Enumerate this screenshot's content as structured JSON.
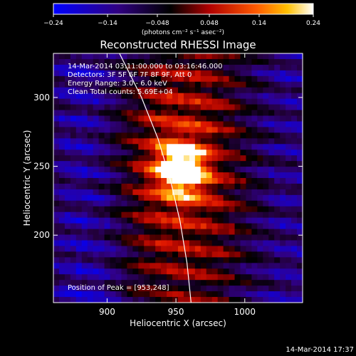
{
  "chart_data": {
    "type": "heatmap",
    "title": "Reconstructed RHESSI Image",
    "xlabel": "Heliocentric X (arcsec)",
    "ylabel": "Heliocentric Y (arcsec)",
    "xlim": [
      861,
      1042
    ],
    "ylim": [
      151,
      332
    ],
    "x_ticks": [
      900,
      950,
      1000
    ],
    "y_ticks": [
      200,
      250,
      300
    ],
    "colorbar": {
      "min": -0.24,
      "max": 0.24,
      "ticks": [
        -0.24,
        -0.14,
        -0.048,
        0.048,
        0.14,
        0.24
      ],
      "tick_labels": [
        "−0.24",
        "−0.14",
        "−0.048",
        "0.048",
        "0.14",
        "0.24"
      ],
      "units": "(photons cm⁻² s⁻¹ asec⁻²)",
      "colormap": [
        "#0000ff",
        "#2a0070",
        "#000000",
        "#b00000",
        "#ff5a00",
        "#ffc000",
        "#ffffff"
      ]
    },
    "annotations": [
      "14-Mar-2014 03:11:00.000 to 03:16:46.000",
      "Detectors: 3F 5F 6F 7F 8F 9F, Att 0",
      "Energy Range: 3.0 - 6.0 keV",
      "Clean    Total counts: 5.69E+04"
    ],
    "peak_label": "Position of Peak = [953,248]",
    "peak": {
      "x": 953,
      "y": 248
    },
    "limb_curve": [
      [
        909,
        332
      ],
      [
        925,
        300
      ],
      [
        937,
        270
      ],
      [
        946,
        240
      ],
      [
        953,
        210
      ],
      [
        958,
        180
      ],
      [
        961,
        151
      ]
    ],
    "footer": "14-Mar-2014 17:37"
  }
}
